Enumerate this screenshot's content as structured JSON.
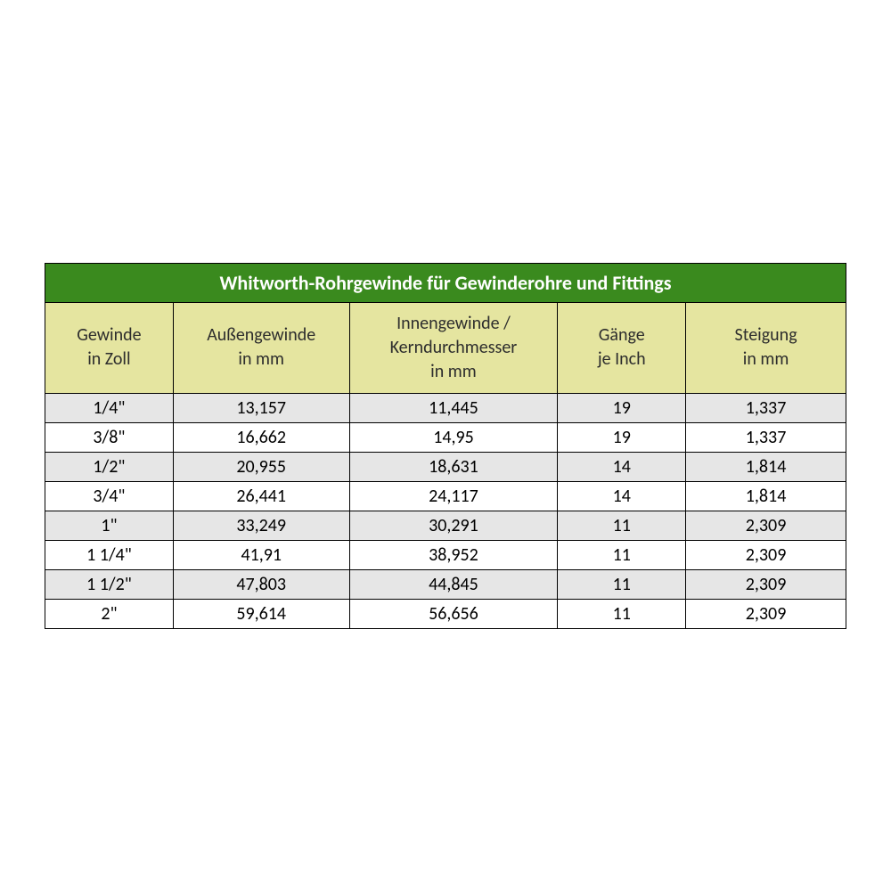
{
  "table": {
    "title": "Whitworth-Rohrgewinde für Gewinderohre und Fittings",
    "title_bg": "#3a8a1e",
    "title_color": "#ffffff",
    "header_bg": "#e5e5a0",
    "row_alt_bg": "#e6e6e6",
    "row_bg": "#ffffff",
    "border_color": "#000000",
    "title_fontsize": 22,
    "header_fontsize": 20,
    "cell_fontsize": 20,
    "columns": [
      {
        "line1": "Gewinde",
        "line2": "in Zoll",
        "width_pct": 16
      },
      {
        "line1": "Außengewinde",
        "line2": "in mm",
        "width_pct": 22
      },
      {
        "line1": "Innengewinde /",
        "line2": "Kerndurchmesser",
        "line3": "in mm",
        "width_pct": 26
      },
      {
        "line1": "Gänge",
        "line2": "je Inch",
        "width_pct": 16
      },
      {
        "line1": "Steigung",
        "line2": "in mm",
        "width_pct": 20
      }
    ],
    "rows": [
      [
        "1/4\"",
        "13,157",
        "11,445",
        "19",
        "1,337"
      ],
      [
        "3/8\"",
        "16,662",
        "14,95",
        "19",
        "1,337"
      ],
      [
        "1/2\"",
        "20,955",
        "18,631",
        "14",
        "1,814"
      ],
      [
        "3/4\"",
        "26,441",
        "24,117",
        "14",
        "1,814"
      ],
      [
        "1\"",
        "33,249",
        "30,291",
        "11",
        "2,309"
      ],
      [
        "1 1/4\"",
        "41,91",
        "38,952",
        "11",
        "2,309"
      ],
      [
        "1 1/2\"",
        "47,803",
        "44,845",
        "11",
        "2,309"
      ],
      [
        "2\"",
        "59,614",
        "56,656",
        "11",
        "2,309"
      ]
    ]
  }
}
